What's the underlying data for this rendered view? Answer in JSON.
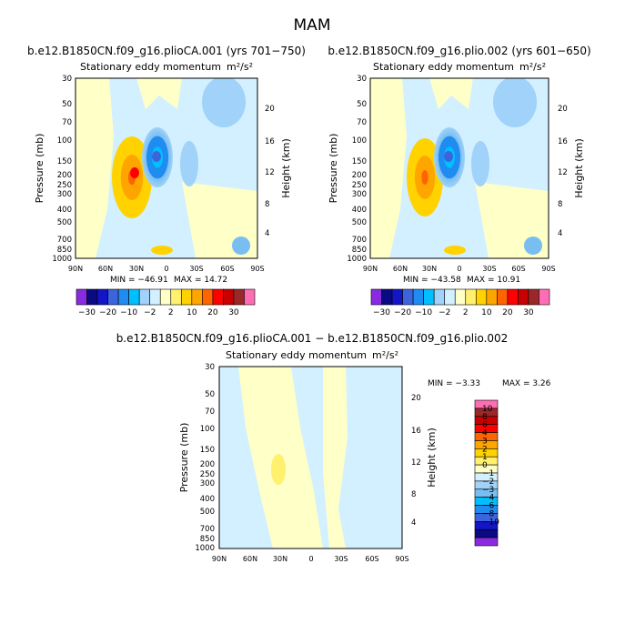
{
  "page_title": "MAM",
  "colors": {
    "full_palette": [
      "#8a2be2",
      "#0a0a82",
      "#1414c8",
      "#3c64dc",
      "#1e8cf0",
      "#00bfff",
      "#a0d2fa",
      "#d2f0ff",
      "#ffffc8",
      "#fff06e",
      "#ffd200",
      "#ffa500",
      "#ff6400",
      "#ff0000",
      "#c80000",
      "#9b2828",
      "#ff6eb4"
    ],
    "diff_palette": [
      "#8a2be2",
      "#0a0a82",
      "#1414c8",
      "#3c64dc",
      "#1e8cf0",
      "#00bfff",
      "#78bef0",
      "#a0d2fa",
      "#d2f0ff",
      "#ffffc8",
      "#fff06e",
      "#ffd200",
      "#ffa500",
      "#ff6400",
      "#ff0000",
      "#c80000",
      "#9b2828",
      "#ff6eb4"
    ]
  },
  "chart_data": [
    {
      "type": "heatmap",
      "title": "b.e12.B1850CN.f09_g16.plioCA.001 (yrs 701−750)",
      "subtitle": "Stationary eddy momentum",
      "units": "m²/s²",
      "ylabel": "Pressure (mb)",
      "y2label": "Height (km)",
      "xticks": [
        "90N",
        "60N",
        "30N",
        "0",
        "30S",
        "60S",
        "90S"
      ],
      "yticks": [
        "30",
        "50",
        "70",
        "100",
        "150",
        "200",
        "250",
        "300",
        "400",
        "500",
        "700",
        "850",
        "1000"
      ],
      "y2ticks": [
        "4",
        "8",
        "12",
        "16",
        "20"
      ],
      "min_label": "MIN = −46.91",
      "max_label": "MAX =   14.72",
      "features": [
        {
          "lat": 20,
          "p": 150,
          "value": -40
        },
        {
          "lat": 28,
          "p": 200,
          "value": 14
        },
        {
          "lat": 40,
          "p": 700,
          "value": -4
        },
        {
          "lat": -10,
          "p": 50,
          "value": -3
        }
      ]
    },
    {
      "type": "heatmap",
      "title": "b.e12.B1850CN.f09_g16.plio.002 (yrs 601−650)",
      "subtitle": "Stationary eddy momentum",
      "units": "m²/s²",
      "ylabel": "Pressure (mb)",
      "y2label": "Height (km)",
      "xticks": [
        "90N",
        "60N",
        "30N",
        "0",
        "30S",
        "60S",
        "90S"
      ],
      "yticks": [
        "30",
        "50",
        "70",
        "100",
        "150",
        "200",
        "250",
        "300",
        "400",
        "500",
        "700",
        "850",
        "1000"
      ],
      "y2ticks": [
        "4",
        "8",
        "12",
        "16",
        "20"
      ],
      "min_label": "MIN = −43.58",
      "max_label": "MAX =   10.91",
      "features": [
        {
          "lat": 20,
          "p": 150,
          "value": -38
        },
        {
          "lat": 28,
          "p": 200,
          "value": 11
        },
        {
          "lat": 40,
          "p": 700,
          "value": -4
        },
        {
          "lat": -10,
          "p": 50,
          "value": -3
        }
      ]
    },
    {
      "type": "heatmap",
      "title": "b.e12.B1850CN.f09_g16.plioCA.001 − b.e12.B1850CN.f09_g16.plio.002",
      "subtitle": "Stationary eddy momentum",
      "units": "m²/s²",
      "ylabel": "Pressure (mb)",
      "y2label": "Height (km)",
      "xticks": [
        "90N",
        "60N",
        "30N",
        "0",
        "30S",
        "60S",
        "90S"
      ],
      "yticks": [
        "30",
        "50",
        "70",
        "100",
        "150",
        "200",
        "250",
        "300",
        "400",
        "500",
        "700",
        "850",
        "1000"
      ],
      "y2ticks": [
        "4",
        "8",
        "12",
        "16",
        "20"
      ],
      "min_label": "MIN =  −3.33",
      "max_label": "MAX =    3.26",
      "features": [
        {
          "lat": 30,
          "p": 220,
          "value": 2
        },
        {
          "lat": 65,
          "p": 400,
          "value": 0.5
        },
        {
          "lat": -15,
          "p": 500,
          "value": 0.5
        }
      ]
    }
  ],
  "colorbars": {
    "full": [
      "−30",
      "−20",
      "−10",
      "−2",
      "2",
      "10",
      "20",
      "30"
    ],
    "diff": [
      "10",
      "8",
      "6",
      "4",
      "3",
      "2",
      "1",
      "0",
      "−1",
      "−2",
      "−3",
      "−4",
      "−6",
      "−8",
      "−10"
    ]
  }
}
